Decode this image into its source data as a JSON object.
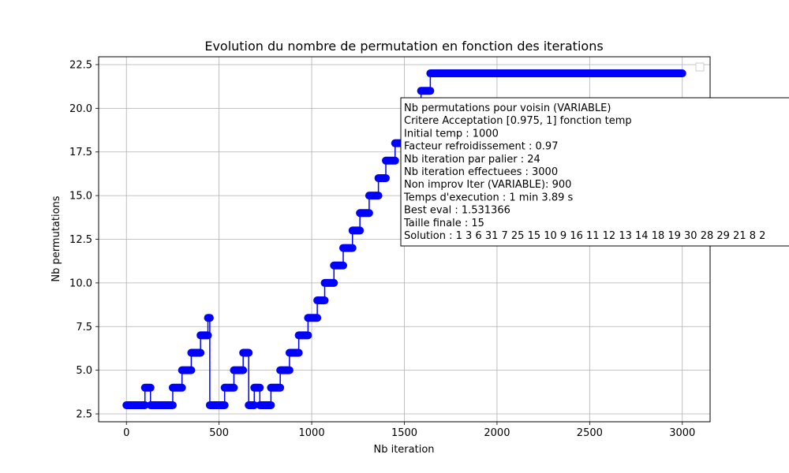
{
  "chart_data": {
    "type": "line",
    "title": "Evolution du nombre de permutation en fonction des iterations",
    "xlabel": "Nb iteration",
    "ylabel": "Nb permutations",
    "xlim": [
      -150,
      3150
    ],
    "ylim": [
      2.05,
      22.95
    ],
    "xticks": [
      0,
      500,
      1000,
      1500,
      2000,
      2500,
      3000
    ],
    "yticks": [
      2.5,
      5.0,
      7.5,
      10.0,
      12.5,
      15.0,
      17.5,
      20.0,
      22.5
    ],
    "xtick_labels": [
      "0",
      "500",
      "1000",
      "1500",
      "2000",
      "2500",
      "3000"
    ],
    "ytick_labels": [
      "2.5",
      "5.0",
      "7.5",
      "10.0",
      "12.5",
      "15.0",
      "17.5",
      "20.0",
      "22.5"
    ],
    "grid": true,
    "series_color": "#0000ff",
    "legend": {
      "placement": "upper right",
      "entries": []
    },
    "step_series": [
      {
        "x_start": 0,
        "x_end": 100,
        "y": 3
      },
      {
        "x_start": 100,
        "x_end": 130,
        "y": 4
      },
      {
        "x_start": 130,
        "x_end": 250,
        "y": 3
      },
      {
        "x_start": 250,
        "x_end": 300,
        "y": 4
      },
      {
        "x_start": 300,
        "x_end": 350,
        "y": 5
      },
      {
        "x_start": 350,
        "x_end": 400,
        "y": 6
      },
      {
        "x_start": 400,
        "x_end": 440,
        "y": 7
      },
      {
        "x_start": 440,
        "x_end": 450,
        "y": 8
      },
      {
        "x_start": 450,
        "x_end": 530,
        "y": 3
      },
      {
        "x_start": 530,
        "x_end": 580,
        "y": 4
      },
      {
        "x_start": 580,
        "x_end": 630,
        "y": 5
      },
      {
        "x_start": 630,
        "x_end": 660,
        "y": 6
      },
      {
        "x_start": 660,
        "x_end": 690,
        "y": 3
      },
      {
        "x_start": 690,
        "x_end": 720,
        "y": 4
      },
      {
        "x_start": 720,
        "x_end": 780,
        "y": 3
      },
      {
        "x_start": 780,
        "x_end": 830,
        "y": 4
      },
      {
        "x_start": 830,
        "x_end": 880,
        "y": 5
      },
      {
        "x_start": 880,
        "x_end": 930,
        "y": 6
      },
      {
        "x_start": 930,
        "x_end": 980,
        "y": 7
      },
      {
        "x_start": 980,
        "x_end": 1030,
        "y": 8
      },
      {
        "x_start": 1030,
        "x_end": 1070,
        "y": 9
      },
      {
        "x_start": 1070,
        "x_end": 1120,
        "y": 10
      },
      {
        "x_start": 1120,
        "x_end": 1170,
        "y": 11
      },
      {
        "x_start": 1170,
        "x_end": 1220,
        "y": 12
      },
      {
        "x_start": 1220,
        "x_end": 1260,
        "y": 13
      },
      {
        "x_start": 1260,
        "x_end": 1310,
        "y": 14
      },
      {
        "x_start": 1310,
        "x_end": 1360,
        "y": 15
      },
      {
        "x_start": 1360,
        "x_end": 1400,
        "y": 16
      },
      {
        "x_start": 1400,
        "x_end": 1450,
        "y": 17
      },
      {
        "x_start": 1450,
        "x_end": 1500,
        "y": 18
      },
      {
        "x_start": 1500,
        "x_end": 1540,
        "y": 19
      },
      {
        "x_start": 1540,
        "x_end": 1590,
        "y": 20
      },
      {
        "x_start": 1590,
        "x_end": 1640,
        "y": 21
      },
      {
        "x_start": 1640,
        "x_end": 3000,
        "y": 22
      }
    ],
    "annotation": {
      "lines": [
        "Nb permutations pour voisin (VARIABLE)",
        "Critere Acceptation [0.975, 1] fonction temp",
        "Initial temp : 1000",
        "Facteur refroidissement : 0.97",
        "Nb iteration par palier : 24",
        "Nb iteration effectuees : 3000",
        "Non improv Iter (VARIABLE): 900",
        "Temps d'execution : 1 min 3.89 s",
        "Best eval : 1.531366",
        "Taille finale : 15",
        "Solution : 1 3 6 31 7 25 15 10 9 16 11 12 13 14 18 19 30 28 29 21 8 2"
      ]
    }
  }
}
